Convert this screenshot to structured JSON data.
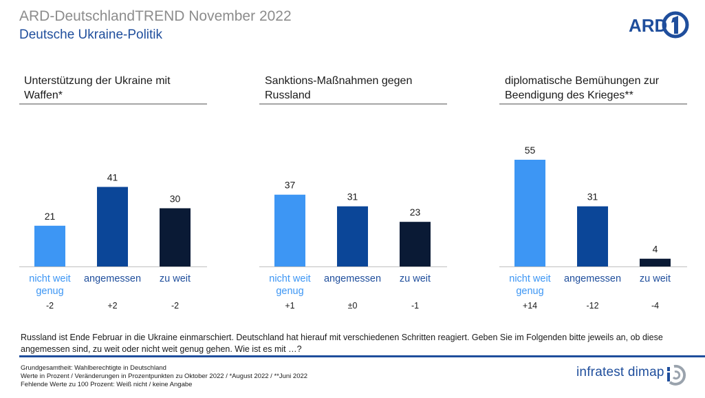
{
  "header": {
    "title": "ARD-DeutschlandTREND November 2022",
    "subtitle": "Deutsche Ukraine-Politik",
    "logo_text": "ARD"
  },
  "chart_data": [
    {
      "type": "bar",
      "title_lines": [
        "Unterstützung der Ukraine mit",
        "Waffen*"
      ],
      "categories": [
        [
          "nicht weit",
          "genug"
        ],
        [
          "angemessen"
        ],
        [
          "zu weit"
        ]
      ],
      "values": [
        21,
        41,
        30
      ],
      "changes": [
        "-2",
        "+2",
        "-2"
      ],
      "colors": [
        "#3d96f4",
        "#0b4698",
        "#0a1a35"
      ],
      "ylim": [
        0,
        55
      ]
    },
    {
      "type": "bar",
      "title_lines": [
        "Sanktions-Maßnahmen gegen",
        "Russland"
      ],
      "categories": [
        [
          "nicht weit",
          "genug"
        ],
        [
          "angemessen"
        ],
        [
          "zu weit"
        ]
      ],
      "values": [
        37,
        31,
        23
      ],
      "changes": [
        "+1",
        "±0",
        "-1"
      ],
      "colors": [
        "#3d96f4",
        "#0b4698",
        "#0a1a35"
      ],
      "ylim": [
        0,
        55
      ]
    },
    {
      "type": "bar",
      "title_lines": [
        "diplomatische Bemühungen zur",
        "Beendigung des Krieges**"
      ],
      "categories": [
        [
          "nicht weit",
          "genug"
        ],
        [
          "angemessen"
        ],
        [
          "zu weit"
        ]
      ],
      "values": [
        55,
        31,
        4
      ],
      "changes": [
        "+14",
        "-12",
        "-4"
      ],
      "colors": [
        "#3d96f4",
        "#0b4698",
        "#0a1a35"
      ],
      "ylim": [
        0,
        55
      ]
    }
  ],
  "question": "Russland ist Ende Februar in die Ukraine einmarschiert. Deutschland hat hierauf mit verschiedenen Schritten reagiert. Geben Sie im Folgenden bitte jeweils an, ob diese angemessen sind, zu weit oder nicht weit genug gehen. Wie ist es mit …?",
  "footer": {
    "line1": "Grundgesamtheit: Wahlberechtigte in Deutschland",
    "line2": "Werte in Prozent / Veränderungen in Prozentpunkten zu Oktober 2022 / *August 2022 / **Juni 2022",
    "line3": "Fehlende Werte zu 100 Prozent: Weiß nicht / keine Angabe",
    "brand": "infratest dimap"
  },
  "colors": {
    "accent": "#1f4e9c",
    "title_gray": "#8c8c8c",
    "category_label_first": "#3d96f4",
    "category_label_other": "#1f4e9c"
  }
}
